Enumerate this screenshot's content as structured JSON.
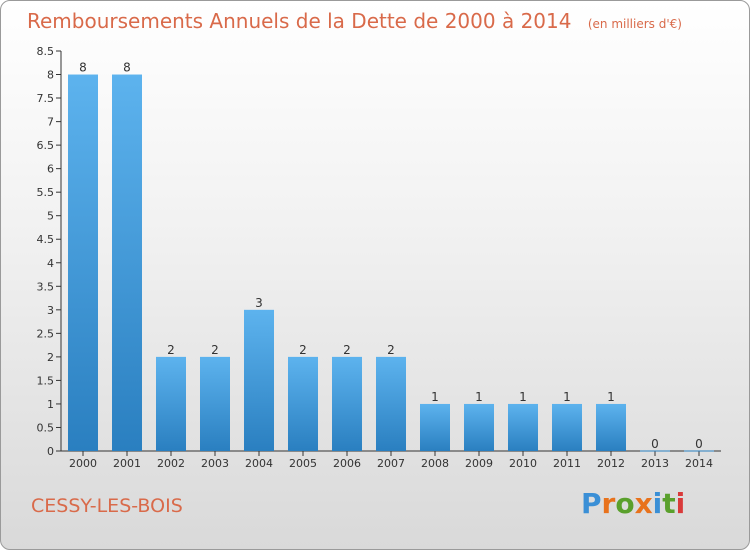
{
  "header": {
    "title": "Remboursements Annuels de la Dette de 2000 à 2014",
    "subtitle": "(en milliers d'€)"
  },
  "footer": {
    "commune": "CESSY-LES-BOIS",
    "logo": "Proxiti",
    "logo_colors": [
      "#3a8fd6",
      "#e8721c",
      "#5aa02c",
      "#e8721c",
      "#3a8fd6",
      "#5aa02c",
      "#d93a3a"
    ]
  },
  "colors": {
    "title": "#d96a4a",
    "bar_top": "#5db3ee",
    "bar_bottom": "#2a7fc0",
    "axis": "#333333"
  },
  "chart_data": {
    "type": "bar",
    "title": "Remboursements Annuels de la Dette de 2000 à 2014",
    "categories": [
      "2000",
      "2001",
      "2002",
      "2003",
      "2004",
      "2005",
      "2006",
      "2007",
      "2008",
      "2009",
      "2010",
      "2011",
      "2012",
      "2013",
      "2014"
    ],
    "values": [
      8,
      8,
      2,
      2,
      3,
      2,
      2,
      2,
      1,
      1,
      1,
      1,
      1,
      0,
      0
    ],
    "data_labels": [
      "8",
      "8",
      "2",
      "2",
      "3",
      "2",
      "2",
      "2",
      "1",
      "1",
      "1",
      "1",
      "1",
      "0",
      "0"
    ],
    "ylim": [
      0,
      8.5
    ],
    "yticks": [
      0,
      0.5,
      1,
      1.5,
      2,
      2.5,
      3,
      3.5,
      4,
      4.5,
      5,
      5.5,
      6,
      6.5,
      7,
      7.5,
      8,
      8.5
    ],
    "ytick_labels": [
      "0",
      "0.5",
      "1",
      "1.5",
      "2",
      "2.5",
      "3",
      "3.5",
      "4",
      "4.5",
      "5",
      "5.5",
      "6",
      "6.5",
      "7",
      "7.5",
      "8",
      "8.5"
    ],
    "xlabel": "",
    "ylabel": "",
    "grid": false,
    "legend": "none"
  }
}
